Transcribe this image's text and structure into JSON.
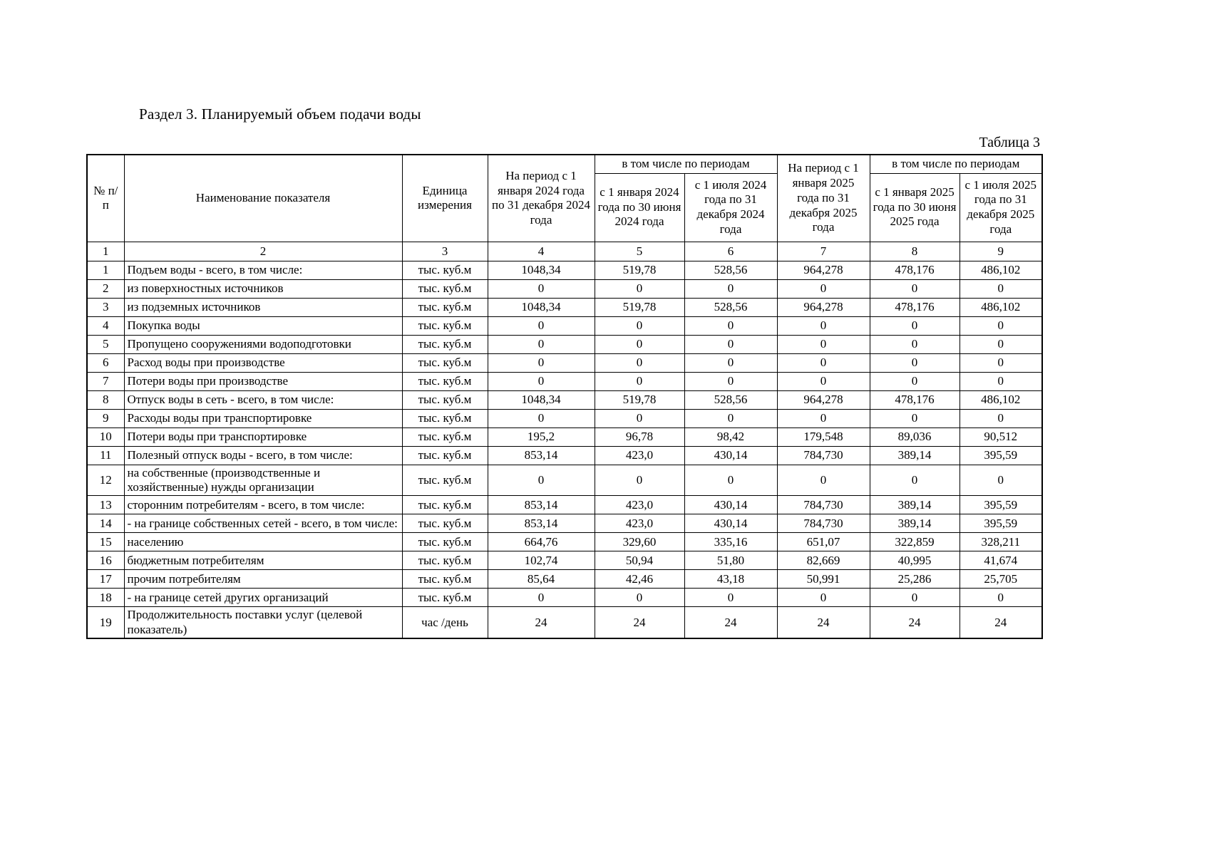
{
  "page": {
    "section_title": "Раздел 3. Планируемый объем подачи воды",
    "table_label": "Таблица 3"
  },
  "table": {
    "header": {
      "num": "№ п/п",
      "indicator": "Наименование показателя",
      "unit": "Единица измерения",
      "period_2024": "На период с 1 января 2024 года по 31 декабря 2024 года",
      "including_2024": "в том числе по периодам",
      "h1_2024": "с 1 января 2024 года по 30 июня 2024 года",
      "h2_2024": "с 1 июля 2024 года по 31 декабря 2024 года",
      "period_2025": "На период с 1 января 2025 года по 31 декабря 2025 года",
      "including_2025": "в том числе по периодам",
      "h1_2025": "с 1 января 2025 года по 30 июня 2025 года",
      "h2_2025": "с 1 июля 2025 года по 31 декабря 2025 года"
    },
    "column_numbers": [
      "1",
      "2",
      "3",
      "4",
      "5",
      "6",
      "7",
      "8",
      "9"
    ],
    "rows": [
      {
        "num": "1",
        "indent": 0,
        "name": "Подъем воды - всего, в том числе:",
        "unit": "тыс. куб.м",
        "values": [
          "1048,34",
          "519,78",
          "528,56",
          "964,278",
          "478,176",
          "486,102"
        ]
      },
      {
        "num": "2",
        "indent": 1,
        "name": "из поверхностных источников",
        "unit": "тыс. куб.м",
        "values": [
          "0",
          "0",
          "0",
          "0",
          "0",
          "0"
        ]
      },
      {
        "num": "3",
        "indent": 1,
        "name": "из подземных источников",
        "unit": "тыс. куб.м",
        "values": [
          "1048,34",
          "519,78",
          "528,56",
          "964,278",
          "478,176",
          "486,102"
        ]
      },
      {
        "num": "4",
        "indent": 0,
        "name": "Покупка воды",
        "unit": "тыс. куб.м",
        "values": [
          "0",
          "0",
          "0",
          "0",
          "0",
          "0"
        ]
      },
      {
        "num": "5",
        "indent": 0,
        "name": "Пропущено сооружениями водоподготовки",
        "unit": "тыс. куб.м",
        "values": [
          "0",
          "0",
          "0",
          "0",
          "0",
          "0"
        ]
      },
      {
        "num": "6",
        "indent": 0,
        "name": "Расход воды при производстве",
        "unit": "тыс. куб.м",
        "values": [
          "0",
          "0",
          "0",
          "0",
          "0",
          "0"
        ]
      },
      {
        "num": "7",
        "indent": 0,
        "name": "Потери воды при производстве",
        "unit": "тыс. куб.м",
        "values": [
          "0",
          "0",
          "0",
          "0",
          "0",
          "0"
        ]
      },
      {
        "num": "8",
        "indent": 0,
        "name": "Отпуск воды в сеть - всего, в том числе:",
        "unit": "тыс. куб.м",
        "values": [
          "1048,34",
          "519,78",
          "528,56",
          "964,278",
          "478,176",
          "486,102"
        ]
      },
      {
        "num": "9",
        "indent": 0,
        "name": "Расходы воды при транспортировке",
        "unit": "тыс. куб.м",
        "values": [
          "0",
          "0",
          "0",
          "0",
          "0",
          "0"
        ]
      },
      {
        "num": "10",
        "indent": 0,
        "name": "Потери воды при транспортировке",
        "unit": "тыс. куб.м",
        "values": [
          "195,2",
          "96,78",
          "98,42",
          "179,548",
          "89,036",
          "90,512"
        ]
      },
      {
        "num": "11",
        "indent": 0,
        "name": "Полезный отпуск воды - всего, в том числе:",
        "unit": "тыс. куб.м",
        "values": [
          "853,14",
          "423,0",
          "430,14",
          "784,730",
          "389,14",
          "395,59"
        ]
      },
      {
        "num": "12",
        "indent": 1,
        "name": "на собственные (производственные и хозяйственные) нужды организации",
        "unit": "тыс. куб.м",
        "values": [
          "0",
          "0",
          "0",
          "0",
          "0",
          "0"
        ]
      },
      {
        "num": "13",
        "indent": 1,
        "name": "сторонним потребителям - всего, в том числе:",
        "unit": "тыс. куб.м",
        "values": [
          "853,14",
          "423,0",
          "430,14",
          "784,730",
          "389,14",
          "395,59"
        ]
      },
      {
        "num": "14",
        "indent": 2,
        "name": "- на границе собственных сетей - всего, в том числе:",
        "unit": "тыс. куб.м",
        "values": [
          "853,14",
          "423,0",
          "430,14",
          "784,730",
          "389,14",
          "395,59"
        ]
      },
      {
        "num": "15",
        "indent": 3,
        "name": "населению",
        "unit": "тыс. куб.м",
        "values": [
          "664,76",
          "329,60",
          "335,16",
          "651,07",
          "322,859",
          "328,211"
        ]
      },
      {
        "num": "16",
        "indent": 3,
        "name": "бюджетным потребителям",
        "unit": "тыс. куб.м",
        "values": [
          "102,74",
          "50,94",
          "51,80",
          "82,669",
          "40,995",
          "41,674"
        ]
      },
      {
        "num": "17",
        "indent": 3,
        "name": "прочим потребителям",
        "unit": "тыс. куб.м",
        "values": [
          "85,64",
          "42,46",
          "43,18",
          "50,991",
          "25,286",
          "25,705"
        ]
      },
      {
        "num": "18",
        "indent": 2,
        "name": "- на границе сетей других организаций",
        "unit": "тыс. куб.м",
        "values": [
          "0",
          "0",
          "0",
          "0",
          "0",
          "0"
        ]
      },
      {
        "num": "19",
        "indent": 0,
        "name": "Продолжительность поставки услуг (целевой показатель)",
        "unit": "час /день",
        "values": [
          "24",
          "24",
          "24",
          "24",
          "24",
          "24"
        ]
      }
    ]
  }
}
